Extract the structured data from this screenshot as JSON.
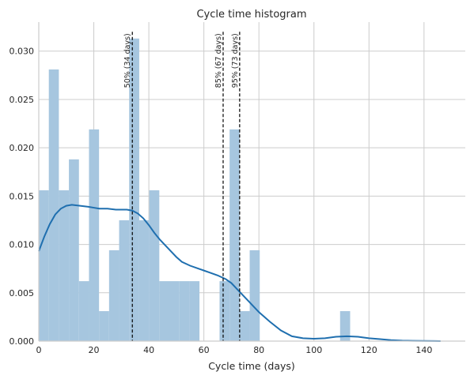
{
  "chart_data": {
    "type": "bar",
    "title": "Cycle time histogram",
    "xlabel": "Cycle time (days)",
    "ylabel": "",
    "xlim": [
      0,
      155
    ],
    "ylim": [
      0,
      0.033
    ],
    "grid": true,
    "x_ticks": [
      0,
      20,
      40,
      60,
      80,
      100,
      120,
      140
    ],
    "y_ticks": [
      0.0,
      0.005,
      0.01,
      0.015,
      0.02,
      0.025,
      0.03
    ],
    "x_tick_labels": [
      "0",
      "20",
      "40",
      "60",
      "80",
      "100",
      "120",
      "140"
    ],
    "y_tick_labels": [
      "0.000",
      "0.005",
      "0.010",
      "0.015",
      "0.020",
      "0.025",
      "0.030"
    ],
    "bar_color": "#a6c6df",
    "kde_color": "#1f6faf",
    "histogram": {
      "bin_width": 3.65,
      "bins": [
        {
          "start": 0.0,
          "density": 0.0156
        },
        {
          "start": 3.65,
          "density": 0.0281
        },
        {
          "start": 7.3,
          "density": 0.0156
        },
        {
          "start": 10.95,
          "density": 0.0188
        },
        {
          "start": 14.6,
          "density": 0.0062
        },
        {
          "start": 18.25,
          "density": 0.0219
        },
        {
          "start": 21.9,
          "density": 0.0031
        },
        {
          "start": 25.55,
          "density": 0.0094
        },
        {
          "start": 29.2,
          "density": 0.0125
        },
        {
          "start": 32.85,
          "density": 0.0313
        },
        {
          "start": 36.5,
          "density": 0.0125
        },
        {
          "start": 40.15,
          "density": 0.0156
        },
        {
          "start": 43.8,
          "density": 0.0062
        },
        {
          "start": 47.45,
          "density": 0.0062
        },
        {
          "start": 51.1,
          "density": 0.0062
        },
        {
          "start": 54.75,
          "density": 0.0062
        },
        {
          "start": 58.4,
          "density": 0.0
        },
        {
          "start": 62.05,
          "density": 0.0
        },
        {
          "start": 65.7,
          "density": 0.0062
        },
        {
          "start": 69.35,
          "density": 0.0219
        },
        {
          "start": 73.0,
          "density": 0.0031
        },
        {
          "start": 76.65,
          "density": 0.0094
        },
        {
          "start": 80.3,
          "density": 0.0
        },
        {
          "start": 109.5,
          "density": 0.0031
        }
      ]
    },
    "kde": {
      "x": [
        0,
        2,
        4,
        6,
        8,
        10,
        12,
        15,
        18,
        20,
        22,
        25,
        28,
        30,
        32,
        34,
        36,
        38,
        40,
        42,
        44,
        46,
        48,
        50,
        52,
        55,
        58,
        60,
        62,
        65,
        68,
        70,
        72,
        75,
        78,
        80,
        84,
        88,
        92,
        96,
        100,
        104,
        108,
        112,
        116,
        120,
        124,
        128,
        132,
        136,
        140,
        144,
        146
      ],
      "y": [
        0.0093,
        0.0108,
        0.0121,
        0.0131,
        0.0137,
        0.014,
        0.0141,
        0.014,
        0.0139,
        0.0138,
        0.0137,
        0.0137,
        0.0136,
        0.0136,
        0.0136,
        0.0135,
        0.0132,
        0.0127,
        0.012,
        0.0112,
        0.0105,
        0.0099,
        0.0093,
        0.0087,
        0.0082,
        0.0078,
        0.0075,
        0.0073,
        0.0071,
        0.0068,
        0.0064,
        0.006,
        0.0054,
        0.0045,
        0.0036,
        0.003,
        0.002,
        0.0011,
        0.0005,
        0.0003,
        0.00025,
        0.0003,
        0.00045,
        0.0005,
        0.00045,
        0.0003,
        0.0002,
        0.0001,
        5e-05,
        3e-05,
        2e-05,
        1e-05,
        0.0
      ]
    },
    "percentiles": [
      {
        "x": 34,
        "label": "50% (34 days)"
      },
      {
        "x": 67,
        "label": "85% (67 days)"
      },
      {
        "x": 73,
        "label": "95% (73 days)"
      }
    ],
    "percentile_line_top": 0.032
  }
}
